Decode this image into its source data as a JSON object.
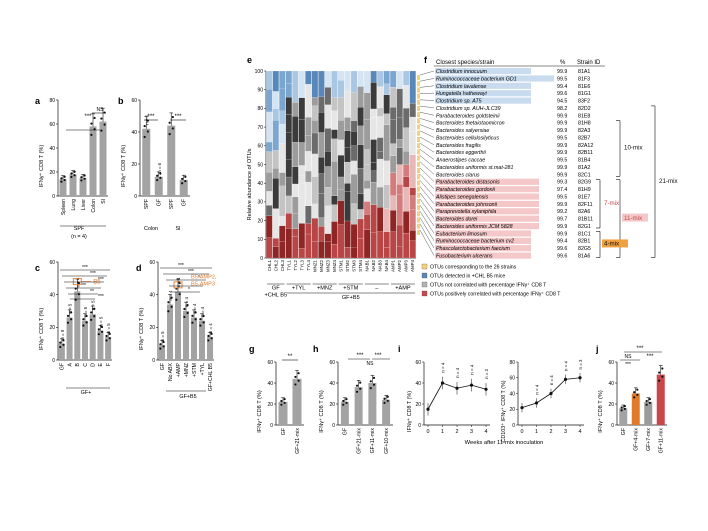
{
  "colors": {
    "grey": "#a3a3a3",
    "dark": "#2b2b2b",
    "orange": "#e07b2a",
    "red": "#c8474b",
    "blue_hl": "#c9dcef",
    "red_hl": "#f4c8c8",
    "yellow": "#f4d27a"
  },
  "panel_letters": [
    "a",
    "b",
    "c",
    "d",
    "e",
    "f",
    "g",
    "h",
    "i",
    "j"
  ],
  "chart_data": [
    {
      "panel": "a",
      "type": "bar",
      "ylabel": "IFNγ⁺ CD8 T (%)",
      "yticks": [
        "0",
        "20",
        "40",
        "60",
        "80"
      ],
      "ylim": [
        0,
        80
      ],
      "categories": [
        "Spleen",
        "Lung",
        "Liver",
        "Colon",
        "SI"
      ],
      "values": [
        14,
        18,
        15,
        58,
        62
      ],
      "group_label": "SPF",
      "group_sublabel": "(n = 4)",
      "sig": [
        "***",
        "NS"
      ]
    },
    {
      "panel": "b",
      "type": "bar",
      "ylabel": "IFNγ⁺ CD8 T (%)",
      "yticks": [
        "0",
        "20",
        "40",
        "60"
      ],
      "ylim": [
        0,
        60
      ],
      "categories": [
        "SPF",
        "GF",
        "SPF",
        "GF"
      ],
      "values": [
        42,
        12,
        44,
        10
      ],
      "n_labels": [
        "n = 6",
        "n = 6"
      ],
      "groups": [
        "Colon",
        "SI"
      ],
      "sig": [
        "***",
        "***"
      ]
    },
    {
      "panel": "c",
      "type": "bar",
      "ylabel": "IFNγ⁺ CD8 T (%)",
      "yticks": [
        "0",
        "20",
        "40",
        "60"
      ],
      "ylim": [
        0,
        60
      ],
      "categories": [
        "GF",
        "A",
        "B",
        "C",
        "D",
        "E",
        "F"
      ],
      "values": [
        10,
        26,
        42,
        24,
        28,
        18,
        14
      ],
      "n_labels": [
        "n = 9",
        "n = 5",
        "n = 4",
        "n = 5",
        "n = 5",
        "n = 5",
        "n = 5"
      ],
      "group_label": "GF+",
      "highlight": "B5",
      "sig": [
        "***",
        "***",
        "***",
        "**",
        "**",
        "***"
      ]
    },
    {
      "panel": "d",
      "type": "bar",
      "ylabel": "IFNγ⁺ CD8 T (%)",
      "yticks": [
        "0",
        "20",
        "40",
        "60"
      ],
      "ylim": [
        0,
        60
      ],
      "categories": [
        "GF",
        "No ABX",
        "+AMP",
        "+MNZ",
        "+STM",
        "+TYL",
        "GF+CHL B5"
      ],
      "values": [
        9,
        34,
        42,
        30,
        26,
        24,
        14
      ],
      "n_labels": [
        "n = 5",
        "n = 4",
        "n = 4",
        "n = 4",
        "n = 4",
        "n = 4",
        "n = 4"
      ],
      "group_label": "GF+B5",
      "highlight": "B5-AMP2, B5-AMP3",
      "sig": [
        "***",
        "***",
        "*",
        "*",
        "*"
      ]
    },
    {
      "panel": "e",
      "type": "bar",
      "ylabel": "Relative abundance of OTUs",
      "yticks": [
        "0",
        "10",
        "20",
        "30",
        "40",
        "50",
        "60",
        "70",
        "80",
        "90",
        "100"
      ],
      "ylim": [
        0,
        100
      ],
      "sample_labels": [
        "CHL1",
        "CHL2",
        "CHL3",
        "TYL1",
        "TYL2",
        "TYL3",
        "TYL4",
        "MNZ1",
        "MNZ2",
        "MNZ3",
        "MNZ4",
        "STM1",
        "STM2",
        "STM3",
        "STM4",
        "NAB1",
        "NAB2",
        "NAB3",
        "NAB4",
        "AMP1",
        "AMP2",
        "AMP3",
        "AMP4"
      ],
      "group_labels": [
        "GF +CHL B5",
        "+TYL",
        "+MNZ",
        "+STM",
        "–",
        "+AMP"
      ],
      "subgroup": "GF+B5",
      "legend": [
        "OTUs corresponding to the 26 strains",
        "OTUs detected in +CHL B5 mice",
        "OTUs not correlated with percentage IFNγ⁺ CD8 T",
        "OTUs positively correlated with percentage IFNγ⁺ CD8 T"
      ]
    },
    {
      "panel": "f",
      "type": "table",
      "headers": [
        "Closest species/strain",
        "%",
        "Strain ID"
      ],
      "rows": [
        [
          "Clostridium innocuum",
          "99.9",
          "81A1"
        ],
        [
          "Ruminococcaceae bacterium GD1",
          "99.5",
          "81F3"
        ],
        [
          "Clostridium lavalense",
          "99.4",
          "81E6"
        ],
        [
          "Hungatella hathewayi",
          "99.6",
          "81G1"
        ],
        [
          "Clostridium sp. AT5",
          "94.5",
          "83F2"
        ],
        [
          "Clostridium sp. AUH-JLC39",
          "98.2",
          "82D2"
        ],
        [
          "Parabacteroides goldsteinii",
          "99.9",
          "81E8"
        ],
        [
          "Bacteroides thetaiotaomicron",
          "99.9",
          "81H8"
        ],
        [
          "Bacteroides salyersiae",
          "99.9",
          "82A3"
        ],
        [
          "Bacteroides cellulosilyticus",
          "99.5",
          "82B7"
        ],
        [
          "Bacteroides fragilis",
          "99.9",
          "82A12"
        ],
        [
          "Bacteroides eggerthii",
          "99.9",
          "82B11"
        ],
        [
          "Anaerostipes caccae",
          "99.5",
          "81B4"
        ],
        [
          "Bacteroides uniformis st.mat-281",
          "99.9",
          "81A2"
        ],
        [
          "Bacteroides clarus",
          "99.9",
          "82C1"
        ],
        [
          "Parabacteroides distasonis",
          "99.3",
          "82G9"
        ],
        [
          "Parabacteroides gordonii",
          "97.4",
          "81H9"
        ],
        [
          "Alistipes senegalensis",
          "99.5",
          "81E7"
        ],
        [
          "Parabacteroides johnsonii",
          "99.9",
          "82F11"
        ],
        [
          "Paraprevotella xylaniphila",
          "99.2",
          "82A6"
        ],
        [
          "Bacteroides dorei",
          "99.7",
          "81B11"
        ],
        [
          "Bacteroides uniformis JCM 5828",
          "99.9",
          "82G1"
        ],
        [
          "Eubacterium limosum",
          "99.9",
          "81C1"
        ],
        [
          "Ruminococcaceae bacterium cv2",
          "99.4",
          "82B1"
        ],
        [
          "Phascolarctobacterium faecium",
          "99.6",
          "82G5"
        ],
        [
          "Fusobacterium ulcerans",
          "99.6",
          "81A6"
        ]
      ],
      "mix_labels": [
        "10-mix",
        "21-mix",
        "7-mix",
        "11-mix",
        "4-mix"
      ]
    },
    {
      "panel": "g",
      "type": "bar",
      "ylabel": "IFNγ⁺ CD8 T (%)",
      "yticks": [
        "0",
        "20",
        "40",
        "60"
      ],
      "ylim": [
        0,
        60
      ],
      "categories": [
        "GF",
        "GF+21-mix"
      ],
      "values": [
        22,
        44
      ],
      "sig": [
        "**"
      ]
    },
    {
      "panel": "h",
      "type": "bar",
      "ylabel": "IFNγ⁺ CD8 T (%)",
      "yticks": [
        "0",
        "20",
        "40",
        "60"
      ],
      "ylim": [
        0,
        60
      ],
      "categories": [
        "GF",
        "GF+21-mix",
        "GF+11-mix",
        "GF+10-mix"
      ],
      "values": [
        22,
        36,
        40,
        24
      ],
      "sig": [
        "***",
        "***",
        "NS"
      ]
    },
    {
      "panel": "i",
      "type": "line",
      "xlabel": "Weeks after 11-mix inoculation",
      "series": [
        {
          "name": "IFNγ⁺ CD8 T (%)",
          "x": [
            0,
            1,
            2,
            3,
            4
          ],
          "y": [
            15,
            40,
            35,
            38,
            34
          ],
          "yticks": [
            "0",
            "20",
            "40",
            "60"
          ],
          "ylim": [
            0,
            60
          ]
        },
        {
          "name": "CD103⁺ IFNγ⁺ CD8 T (%)",
          "x": [
            0,
            1,
            2,
            3,
            4
          ],
          "y": [
            22,
            28,
            40,
            58,
            60
          ],
          "yticks": [
            "0",
            "20",
            "40",
            "60",
            "80"
          ],
          "ylim": [
            0,
            80
          ]
        }
      ],
      "n_labels": [
        "n = 4",
        "n = 4",
        "n = 4",
        "n = 3"
      ]
    },
    {
      "panel": "j",
      "type": "bar",
      "ylabel": "IFNγ⁺ CD8 T (%)",
      "yticks": [
        "0",
        "20",
        "40",
        "60"
      ],
      "ylim": [
        0,
        60
      ],
      "categories": [
        "GF",
        "GF+4-mix",
        "GF+7-mix",
        "GF+11-mix"
      ],
      "values": [
        16,
        30,
        22,
        48
      ],
      "bar_colors": [
        "#a3a3a3",
        "#e07b2a",
        "#9b9b9b",
        "#c8474b"
      ],
      "sig": [
        "***",
        "***",
        "NS",
        "***"
      ]
    }
  ]
}
